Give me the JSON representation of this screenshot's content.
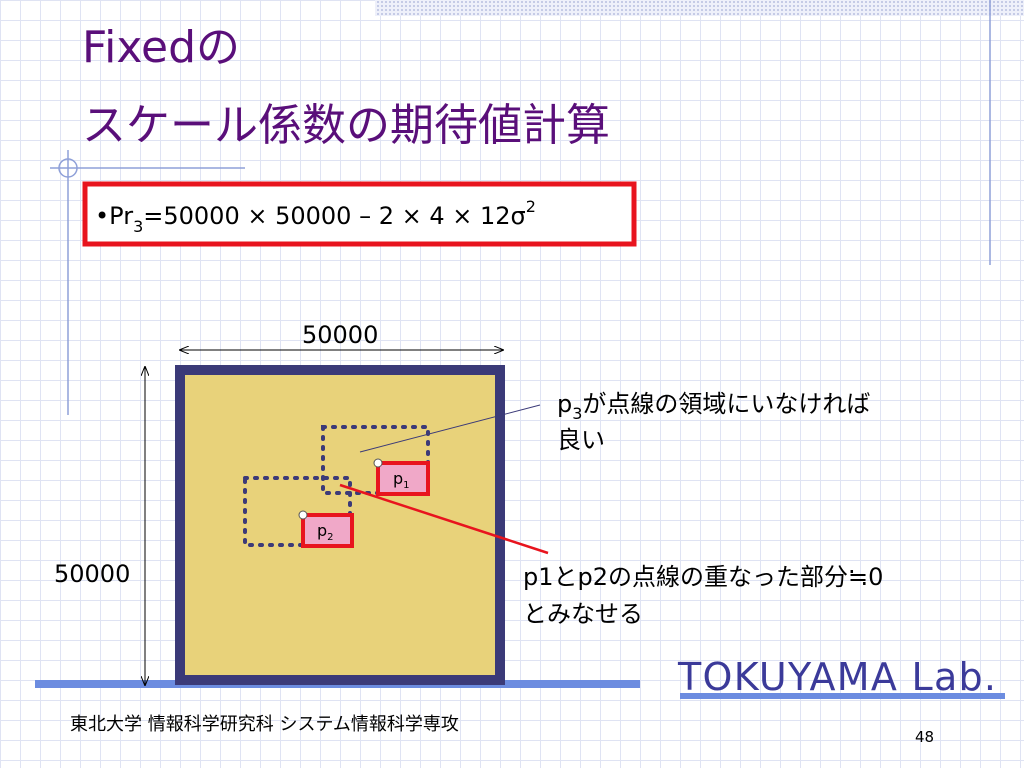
{
  "title": {
    "line1": "Fixedの",
    "line2": "スケール係数の期待値計算"
  },
  "formula": {
    "prefix": "•Pr",
    "sub": "3",
    "main": "=50000 × 50000 – 2 × 4 × 12σ",
    "sup": "2"
  },
  "diagram": {
    "width_label": "50000",
    "height_label": "50000",
    "p1": {
      "label": "p",
      "sub": "1"
    },
    "p2": {
      "label": "p",
      "sub": "2"
    }
  },
  "notes": [
    {
      "prefix": "p",
      "sub": "3",
      "text": "が点線の領域にいなければ",
      "line2": "良い"
    },
    {
      "text": "p1とp2の点線の重なった部分≒0",
      "line2": "とみなせる"
    }
  ],
  "footer": {
    "affiliation": "東北大学 情報科学研究科 システム情報科学専攻",
    "lab": "TOKUYAMA Lab.",
    "page": "48"
  }
}
